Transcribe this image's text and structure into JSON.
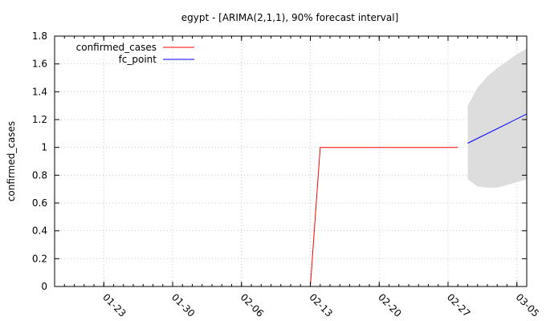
{
  "chart_data": {
    "type": "line",
    "title": "egypt -  [ARIMA(2,1,1), 90% forecast interval]",
    "ylabel": "confirmed_cases",
    "xlabel": "",
    "ylim": [
      0,
      1.8
    ],
    "xlim": [
      "2020-01-18",
      "2020-03-06"
    ],
    "yticks": [
      "0",
      "0.2",
      "0.4",
      "0.6",
      "0.8",
      "1",
      "1.2",
      "1.4",
      "1.6",
      "1.8"
    ],
    "xticks": [
      {
        "label": "01-23",
        "date": "2020-01-23"
      },
      {
        "label": "01-30",
        "date": "2020-01-30"
      },
      {
        "label": "02-06",
        "date": "2020-02-06"
      },
      {
        "label": "02-13",
        "date": "2020-02-13"
      },
      {
        "label": "02-20",
        "date": "2020-02-20"
      },
      {
        "label": "02-27",
        "date": "2020-02-27"
      },
      {
        "label": "03-05",
        "date": "2020-03-05"
      }
    ],
    "grid": true,
    "legend_position": "top-left",
    "series": [
      {
        "name": "confirmed_cases",
        "color": "#ff0000",
        "points": [
          {
            "x": "2020-02-13",
            "y": 0
          },
          {
            "x": "2020-02-14",
            "y": 1
          },
          {
            "x": "2020-02-28",
            "y": 1
          }
        ]
      },
      {
        "name": "fc_point",
        "color": "#0000ff",
        "points": [
          {
            "x": "2020-02-29",
            "y": 1.03
          },
          {
            "x": "2020-03-06",
            "y": 1.24
          }
        ]
      }
    ],
    "forecast_interval": {
      "level": "90%",
      "color": "#dddddd",
      "points": [
        {
          "x": "2020-02-29",
          "lower": 0.77,
          "upper": 1.3
        },
        {
          "x": "2020-03-01",
          "lower": 0.72,
          "upper": 1.43
        },
        {
          "x": "2020-03-02",
          "lower": 0.71,
          "upper": 1.51
        },
        {
          "x": "2020-03-03",
          "lower": 0.71,
          "upper": 1.57
        },
        {
          "x": "2020-03-04",
          "lower": 0.73,
          "upper": 1.62
        },
        {
          "x": "2020-03-05",
          "lower": 0.75,
          "upper": 1.67
        },
        {
          "x": "2020-03-06",
          "lower": 0.77,
          "upper": 1.71
        }
      ]
    }
  }
}
